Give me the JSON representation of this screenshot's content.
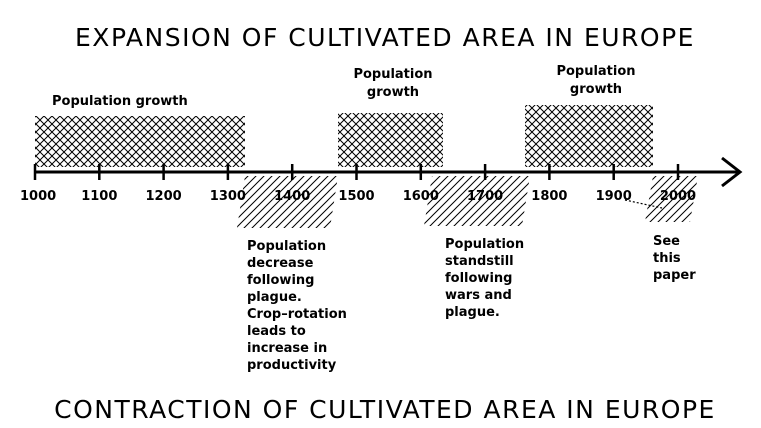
{
  "top_title": "EXPANSION OF CULTIVATED AREA IN EUROPE",
  "bottom_title": "CONTRACTION OF CULTIVATED AREA IN EUROPE",
  "axis": {
    "ticks": [
      "1000",
      "1100",
      "1200",
      "1300",
      "1400",
      "1500",
      "1600",
      "1700",
      "1800",
      "1900",
      "2000"
    ]
  },
  "expansion": [
    {
      "label": [
        "Population growth"
      ]
    },
    {
      "label": [
        "Population",
        "growth"
      ]
    },
    {
      "label": [
        "Population",
        "growth"
      ]
    }
  ],
  "contraction": [
    {
      "label": [
        "Population",
        "decrease",
        "following",
        "plague.",
        "Crop–rotation",
        "leads to",
        "increase in",
        "productivity"
      ]
    },
    {
      "label": [
        "Population",
        "standstill",
        "following",
        "wars and",
        "plague."
      ]
    },
    {
      "label": [
        "See",
        "this",
        "paper"
      ]
    }
  ]
}
